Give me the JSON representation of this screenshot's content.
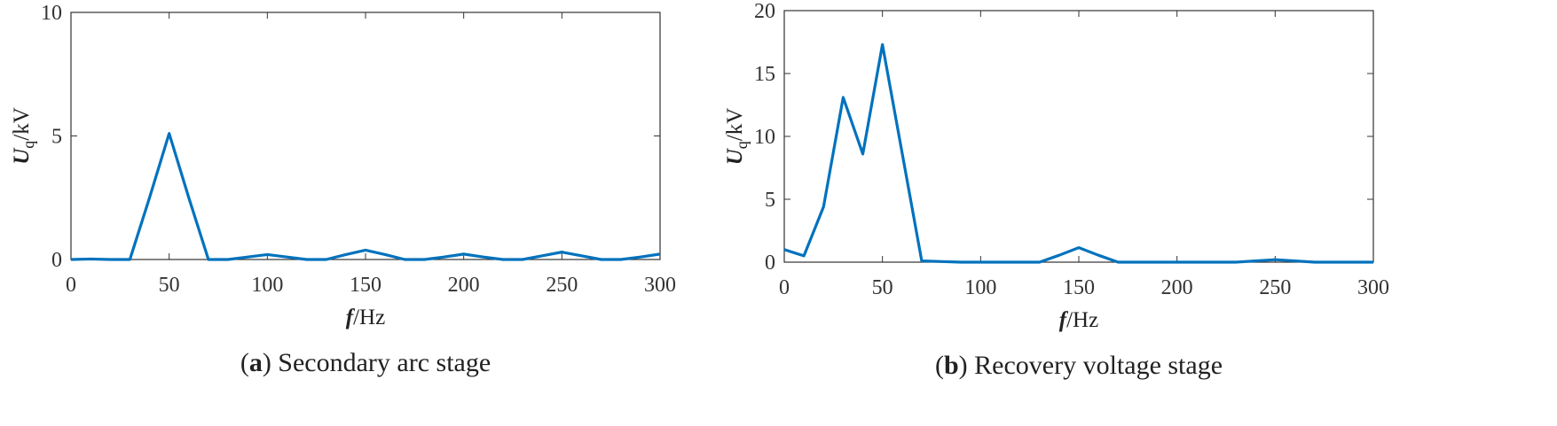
{
  "chart_data": [
    {
      "type": "line",
      "x": [
        0,
        10,
        20,
        30,
        40,
        50,
        60,
        70,
        80,
        90,
        100,
        110,
        120,
        130,
        140,
        150,
        160,
        170,
        180,
        190,
        200,
        210,
        220,
        230,
        240,
        250,
        260,
        270,
        280,
        290,
        300
      ],
      "series": [
        {
          "color": "#0072bd",
          "values": [
            0,
            0.02,
            0,
            0,
            2.5,
            5.1,
            2.5,
            0,
            0,
            0.1,
            0.2,
            0.1,
            0,
            0,
            0.2,
            0.38,
            0.2,
            0,
            0,
            0.1,
            0.22,
            0.1,
            0,
            0,
            0.15,
            0.3,
            0.15,
            0,
            0,
            0.1,
            0.22
          ]
        }
      ],
      "xlim": [
        0,
        300
      ],
      "xticks": [
        0,
        50,
        100,
        150,
        200,
        250,
        300
      ],
      "ylim": [
        0,
        10
      ],
      "yticks": [
        0,
        5,
        10
      ],
      "xlabel": {
        "symbol": "f",
        "unit": "/Hz"
      },
      "ylabel": {
        "symbol": "U",
        "subscript": "q",
        "unit": "/kV"
      },
      "caption": [
        "(",
        "a",
        ") Secondary arc stage"
      ]
    },
    {
      "type": "line",
      "x": [
        0,
        10,
        20,
        30,
        40,
        50,
        60,
        70,
        80,
        90,
        100,
        110,
        120,
        130,
        140,
        150,
        160,
        170,
        180,
        190,
        200,
        210,
        220,
        230,
        240,
        250,
        260,
        270,
        280,
        290,
        300
      ],
      "series": [
        {
          "color": "#0072bd",
          "values": [
            1.0,
            0.5,
            4.4,
            13.1,
            8.6,
            17.3,
            8.7,
            0.1,
            0.05,
            0,
            0,
            0,
            0,
            0,
            0.55,
            1.15,
            0.55,
            0,
            0,
            0,
            0,
            0,
            0,
            0,
            0.1,
            0.2,
            0.1,
            0,
            0,
            0,
            0
          ]
        }
      ],
      "xlim": [
        0,
        300
      ],
      "xticks": [
        0,
        50,
        100,
        150,
        200,
        250,
        300
      ],
      "ylim": [
        0,
        20
      ],
      "yticks": [
        0,
        5,
        10,
        15,
        20
      ],
      "xlabel": {
        "symbol": "f",
        "unit": "/Hz"
      },
      "ylabel": {
        "symbol": "U",
        "subscript": "q",
        "unit": "/kV"
      },
      "caption": [
        "(",
        "b",
        ") Recovery voltage stage"
      ]
    }
  ]
}
